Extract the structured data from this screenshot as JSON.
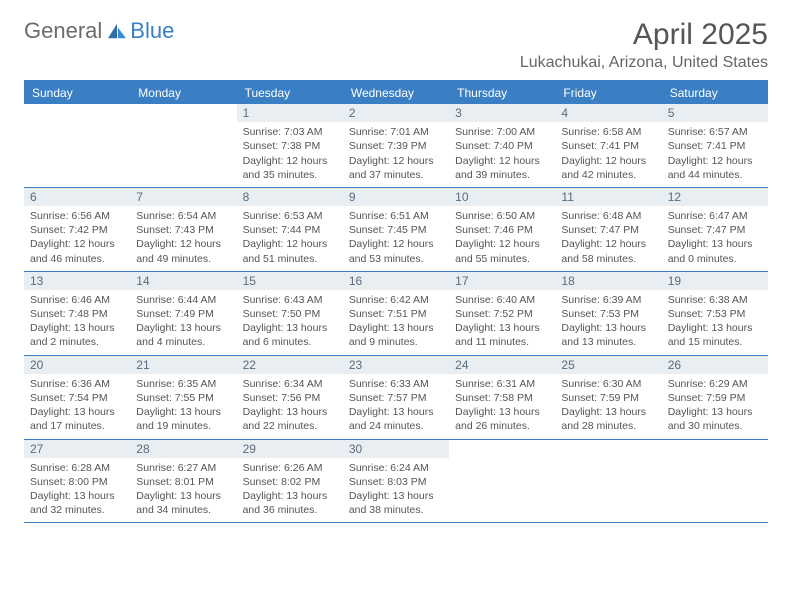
{
  "logo": {
    "general": "General",
    "blue": "Blue"
  },
  "header": {
    "title": "April 2025",
    "location": "Lukachukai, Arizona, United States"
  },
  "dayNames": [
    "Sunday",
    "Monday",
    "Tuesday",
    "Wednesday",
    "Thursday",
    "Friday",
    "Saturday"
  ],
  "colors": {
    "accent": "#3a7fc4",
    "dayHeaderText": "#ffffff",
    "dayNumBg": "#e9eef3",
    "text": "#555555"
  },
  "weeks": [
    [
      null,
      null,
      {
        "n": "1",
        "sr": "Sunrise: 7:03 AM",
        "ss": "Sunset: 7:38 PM",
        "d1": "Daylight: 12 hours",
        "d2": "and 35 minutes."
      },
      {
        "n": "2",
        "sr": "Sunrise: 7:01 AM",
        "ss": "Sunset: 7:39 PM",
        "d1": "Daylight: 12 hours",
        "d2": "and 37 minutes."
      },
      {
        "n": "3",
        "sr": "Sunrise: 7:00 AM",
        "ss": "Sunset: 7:40 PM",
        "d1": "Daylight: 12 hours",
        "d2": "and 39 minutes."
      },
      {
        "n": "4",
        "sr": "Sunrise: 6:58 AM",
        "ss": "Sunset: 7:41 PM",
        "d1": "Daylight: 12 hours",
        "d2": "and 42 minutes."
      },
      {
        "n": "5",
        "sr": "Sunrise: 6:57 AM",
        "ss": "Sunset: 7:41 PM",
        "d1": "Daylight: 12 hours",
        "d2": "and 44 minutes."
      }
    ],
    [
      {
        "n": "6",
        "sr": "Sunrise: 6:56 AM",
        "ss": "Sunset: 7:42 PM",
        "d1": "Daylight: 12 hours",
        "d2": "and 46 minutes."
      },
      {
        "n": "7",
        "sr": "Sunrise: 6:54 AM",
        "ss": "Sunset: 7:43 PM",
        "d1": "Daylight: 12 hours",
        "d2": "and 49 minutes."
      },
      {
        "n": "8",
        "sr": "Sunrise: 6:53 AM",
        "ss": "Sunset: 7:44 PM",
        "d1": "Daylight: 12 hours",
        "d2": "and 51 minutes."
      },
      {
        "n": "9",
        "sr": "Sunrise: 6:51 AM",
        "ss": "Sunset: 7:45 PM",
        "d1": "Daylight: 12 hours",
        "d2": "and 53 minutes."
      },
      {
        "n": "10",
        "sr": "Sunrise: 6:50 AM",
        "ss": "Sunset: 7:46 PM",
        "d1": "Daylight: 12 hours",
        "d2": "and 55 minutes."
      },
      {
        "n": "11",
        "sr": "Sunrise: 6:48 AM",
        "ss": "Sunset: 7:47 PM",
        "d1": "Daylight: 12 hours",
        "d2": "and 58 minutes."
      },
      {
        "n": "12",
        "sr": "Sunrise: 6:47 AM",
        "ss": "Sunset: 7:47 PM",
        "d1": "Daylight: 13 hours",
        "d2": "and 0 minutes."
      }
    ],
    [
      {
        "n": "13",
        "sr": "Sunrise: 6:46 AM",
        "ss": "Sunset: 7:48 PM",
        "d1": "Daylight: 13 hours",
        "d2": "and 2 minutes."
      },
      {
        "n": "14",
        "sr": "Sunrise: 6:44 AM",
        "ss": "Sunset: 7:49 PM",
        "d1": "Daylight: 13 hours",
        "d2": "and 4 minutes."
      },
      {
        "n": "15",
        "sr": "Sunrise: 6:43 AM",
        "ss": "Sunset: 7:50 PM",
        "d1": "Daylight: 13 hours",
        "d2": "and 6 minutes."
      },
      {
        "n": "16",
        "sr": "Sunrise: 6:42 AM",
        "ss": "Sunset: 7:51 PM",
        "d1": "Daylight: 13 hours",
        "d2": "and 9 minutes."
      },
      {
        "n": "17",
        "sr": "Sunrise: 6:40 AM",
        "ss": "Sunset: 7:52 PM",
        "d1": "Daylight: 13 hours",
        "d2": "and 11 minutes."
      },
      {
        "n": "18",
        "sr": "Sunrise: 6:39 AM",
        "ss": "Sunset: 7:53 PM",
        "d1": "Daylight: 13 hours",
        "d2": "and 13 minutes."
      },
      {
        "n": "19",
        "sr": "Sunrise: 6:38 AM",
        "ss": "Sunset: 7:53 PM",
        "d1": "Daylight: 13 hours",
        "d2": "and 15 minutes."
      }
    ],
    [
      {
        "n": "20",
        "sr": "Sunrise: 6:36 AM",
        "ss": "Sunset: 7:54 PM",
        "d1": "Daylight: 13 hours",
        "d2": "and 17 minutes."
      },
      {
        "n": "21",
        "sr": "Sunrise: 6:35 AM",
        "ss": "Sunset: 7:55 PM",
        "d1": "Daylight: 13 hours",
        "d2": "and 19 minutes."
      },
      {
        "n": "22",
        "sr": "Sunrise: 6:34 AM",
        "ss": "Sunset: 7:56 PM",
        "d1": "Daylight: 13 hours",
        "d2": "and 22 minutes."
      },
      {
        "n": "23",
        "sr": "Sunrise: 6:33 AM",
        "ss": "Sunset: 7:57 PM",
        "d1": "Daylight: 13 hours",
        "d2": "and 24 minutes."
      },
      {
        "n": "24",
        "sr": "Sunrise: 6:31 AM",
        "ss": "Sunset: 7:58 PM",
        "d1": "Daylight: 13 hours",
        "d2": "and 26 minutes."
      },
      {
        "n": "25",
        "sr": "Sunrise: 6:30 AM",
        "ss": "Sunset: 7:59 PM",
        "d1": "Daylight: 13 hours",
        "d2": "and 28 minutes."
      },
      {
        "n": "26",
        "sr": "Sunrise: 6:29 AM",
        "ss": "Sunset: 7:59 PM",
        "d1": "Daylight: 13 hours",
        "d2": "and 30 minutes."
      }
    ],
    [
      {
        "n": "27",
        "sr": "Sunrise: 6:28 AM",
        "ss": "Sunset: 8:00 PM",
        "d1": "Daylight: 13 hours",
        "d2": "and 32 minutes."
      },
      {
        "n": "28",
        "sr": "Sunrise: 6:27 AM",
        "ss": "Sunset: 8:01 PM",
        "d1": "Daylight: 13 hours",
        "d2": "and 34 minutes."
      },
      {
        "n": "29",
        "sr": "Sunrise: 6:26 AM",
        "ss": "Sunset: 8:02 PM",
        "d1": "Daylight: 13 hours",
        "d2": "and 36 minutes."
      },
      {
        "n": "30",
        "sr": "Sunrise: 6:24 AM",
        "ss": "Sunset: 8:03 PM",
        "d1": "Daylight: 13 hours",
        "d2": "and 38 minutes."
      },
      null,
      null,
      null
    ]
  ]
}
